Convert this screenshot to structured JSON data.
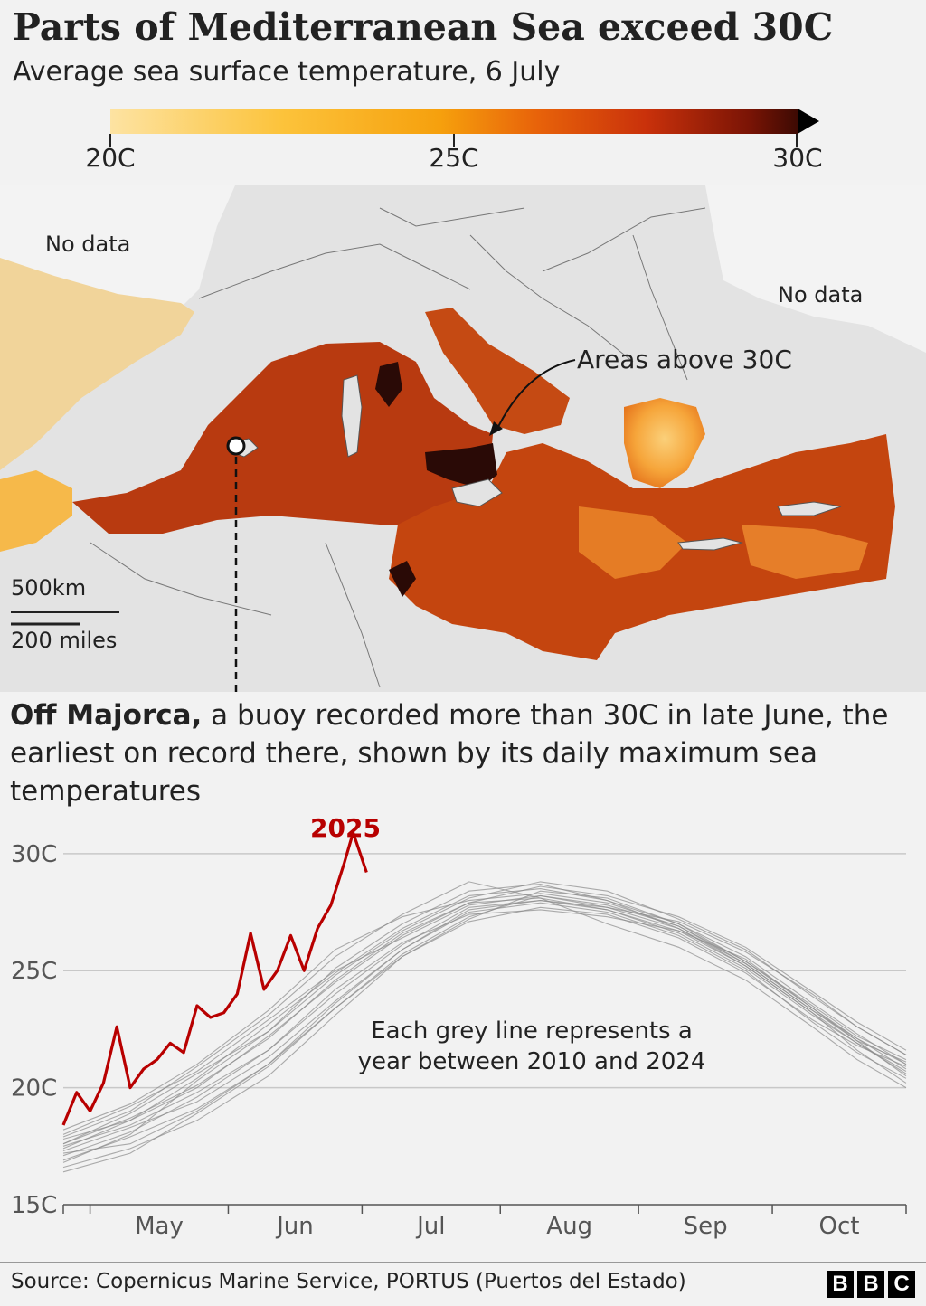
{
  "header": {
    "title": "Parts of Mediterranean Sea exceed 30C",
    "subtitle": "Average sea surface temperature, 6 July"
  },
  "color_scale": {
    "ticks": [
      "20C",
      "25C",
      "30C"
    ],
    "colors": [
      "#fde3a2",
      "#fcc33b",
      "#f6a00d",
      "#e8630a",
      "#c9310b",
      "#7a1405",
      "#3d0a03"
    ]
  },
  "map": {
    "no_data_west": "No data",
    "no_data_east": "No data",
    "annotation": "Areas above 30C",
    "scale_km": "500km",
    "scale_miles": "200 miles"
  },
  "paragraph": {
    "lead": "Off Majorca,",
    "rest": " a buoy recorded more than 30C in late June, the earliest on record there, shown by its daily maximum sea temperatures"
  },
  "chart_data": {
    "type": "line",
    "title": "",
    "xlabel": "",
    "ylabel": "",
    "y_tick_labels": [
      "15C",
      "20C",
      "25C",
      "30C"
    ],
    "ylim": [
      15,
      31.5
    ],
    "x_tick_labels": [
      "May",
      "Jun",
      "Jul",
      "Aug",
      "Sep",
      "Oct"
    ],
    "xlim": [
      "2025-04-25",
      "2025-10-31"
    ],
    "grid": true,
    "highlight": {
      "name": "2025",
      "color": "#b80000",
      "x": [
        "2025-04-25",
        "2025-04-28",
        "2025-05-01",
        "2025-05-04",
        "2025-05-07",
        "2025-05-10",
        "2025-05-13",
        "2025-05-16",
        "2025-05-19",
        "2025-05-22",
        "2025-05-25",
        "2025-05-28",
        "2025-05-31",
        "2025-06-03",
        "2025-06-06",
        "2025-06-09",
        "2025-06-12",
        "2025-06-15",
        "2025-06-18",
        "2025-06-21",
        "2025-06-24",
        "2025-06-27",
        "2025-06-29",
        "2025-07-02"
      ],
      "values": [
        18.4,
        19.8,
        19.0,
        20.2,
        22.6,
        20.0,
        20.8,
        21.2,
        21.9,
        21.5,
        23.5,
        23.0,
        23.2,
        24.0,
        26.6,
        24.2,
        25.0,
        26.5,
        25.0,
        26.8,
        27.8,
        29.6,
        30.9,
        29.2
      ]
    },
    "annotations": [
      "Each grey line represents a year between 2010 and 2024"
    ],
    "grey_series_x": [
      "2025-04-25",
      "2025-05-10",
      "2025-05-25",
      "2025-06-10",
      "2025-06-25",
      "2025-07-10",
      "2025-07-25",
      "2025-08-10",
      "2025-08-25",
      "2025-09-10",
      "2025-09-25",
      "2025-10-10",
      "2025-10-20",
      "2025-10-31"
    ],
    "grey_series": [
      {
        "values": [
          17.5,
          18.4,
          19.8,
          21.6,
          24.2,
          26.2,
          27.4,
          27.6,
          27.3,
          26.7,
          25.5,
          23.4,
          22.0,
          20.5
        ]
      },
      {
        "values": [
          16.8,
          18.0,
          20.3,
          22.4,
          25.1,
          27.0,
          28.4,
          28.7,
          28.0,
          26.8,
          25.2,
          23.2,
          21.6,
          20.2
        ]
      },
      {
        "values": [
          18.0,
          19.2,
          20.7,
          22.9,
          25.0,
          26.4,
          27.8,
          28.2,
          27.7,
          27.1,
          25.8,
          24.0,
          22.6,
          21.4
        ]
      },
      {
        "values": [
          17.2,
          17.6,
          19.0,
          21.0,
          23.4,
          25.6,
          27.1,
          27.7,
          27.4,
          26.4,
          24.9,
          22.9,
          21.8,
          20.9
        ]
      },
      {
        "values": [
          17.9,
          19.0,
          20.9,
          23.1,
          25.6,
          27.4,
          28.8,
          28.1,
          27.0,
          26.0,
          24.6,
          22.6,
          21.2,
          20.0
        ]
      },
      {
        "values": [
          16.6,
          17.4,
          18.6,
          20.5,
          23.1,
          25.6,
          27.2,
          28.4,
          28.1,
          27.0,
          25.6,
          23.6,
          22.3,
          21.0
        ]
      },
      {
        "values": [
          17.6,
          18.7,
          20.1,
          22.1,
          24.6,
          26.6,
          27.9,
          28.6,
          28.2,
          27.3,
          26.0,
          24.1,
          22.8,
          21.6
        ]
      },
      {
        "values": [
          17.3,
          18.3,
          19.4,
          21.3,
          23.7,
          25.9,
          27.6,
          28.0,
          27.6,
          26.6,
          25.1,
          23.1,
          21.9,
          20.7
        ]
      },
      {
        "values": [
          18.2,
          19.3,
          21.0,
          23.3,
          25.9,
          27.3,
          28.0,
          28.3,
          27.9,
          26.9,
          25.3,
          23.3,
          22.0,
          21.1
        ]
      },
      {
        "values": [
          16.9,
          17.9,
          19.1,
          21.0,
          23.6,
          25.9,
          27.5,
          27.9,
          27.5,
          26.5,
          25.0,
          22.8,
          21.5,
          20.4
        ]
      },
      {
        "values": [
          17.8,
          18.6,
          20.4,
          22.7,
          24.9,
          26.8,
          28.2,
          28.5,
          28.0,
          27.0,
          25.4,
          23.5,
          22.2,
          21.2
        ]
      },
      {
        "values": [
          17.1,
          18.1,
          19.6,
          21.6,
          24.0,
          26.1,
          27.7,
          28.0,
          27.7,
          26.8,
          25.3,
          23.3,
          22.1,
          21.0
        ]
      },
      {
        "values": [
          17.6,
          18.9,
          20.6,
          22.4,
          24.8,
          26.7,
          28.1,
          28.8,
          28.4,
          27.2,
          25.9,
          23.9,
          22.6,
          21.4
        ]
      },
      {
        "values": [
          16.4,
          17.2,
          18.9,
          20.9,
          23.4,
          25.7,
          27.3,
          28.2,
          27.8,
          26.9,
          25.4,
          23.4,
          22.1,
          20.8
        ]
      },
      {
        "values": [
          17.4,
          18.6,
          20.0,
          22.2,
          24.5,
          26.5,
          27.9,
          28.1,
          27.6,
          26.7,
          25.2,
          23.2,
          21.9,
          20.6
        ]
      }
    ]
  },
  "footer": {
    "source": "Source: Copernicus Marine Service, PORTUS (Puertos del Estado)",
    "logo": [
      "B",
      "B",
      "C"
    ]
  }
}
